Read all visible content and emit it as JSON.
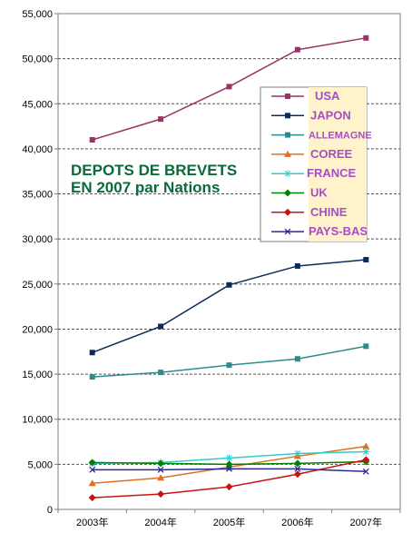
{
  "chart_data": {
    "type": "line",
    "title_lines": [
      "DEPOTS DE BREVETS",
      "EN 2007 par Nations"
    ],
    "categories": [
      "2003年",
      "2004年",
      "2005年",
      "2006年",
      "2007年"
    ],
    "y_ticks": [
      "0",
      "5,000",
      "10,000",
      "15,000",
      "20,000",
      "25,000",
      "30,000",
      "35,000",
      "40,000",
      "45,000",
      "50,000",
      "55,000"
    ],
    "ylim": [
      0,
      55000
    ],
    "grid": "horizontal dashed",
    "legend_position": "top-right",
    "series": [
      {
        "name": "USA",
        "color": "#993366",
        "marker": "square",
        "values": [
          41000,
          43300,
          46900,
          51000,
          52300
        ]
      },
      {
        "name": "JAPON",
        "color": "#0b2a5a",
        "marker": "square",
        "values": [
          17400,
          20300,
          24900,
          27000,
          27700
        ]
      },
      {
        "name": "ALLEMAGNE",
        "color": "#2e8b8b",
        "marker": "square",
        "values": [
          14700,
          15200,
          16000,
          16700,
          18100
        ]
      },
      {
        "name": "COREE",
        "color": "#e07020",
        "marker": "triangle",
        "values": [
          2900,
          3500,
          4700,
          5900,
          7000
        ]
      },
      {
        "name": "FRANCE",
        "color": "#33cccc",
        "marker": "star",
        "values": [
          5100,
          5200,
          5700,
          6200,
          6400
        ]
      },
      {
        "name": "UK",
        "color": "#008000",
        "marker": "diamond",
        "values": [
          5200,
          5100,
          5000,
          5100,
          5300
        ]
      },
      {
        "name": "CHINE",
        "color": "#cc1111",
        "marker": "diamond",
        "values": [
          1300,
          1700,
          2500,
          3900,
          5500
        ]
      },
      {
        "name": "PAYS-BAS",
        "color": "#2a2a90",
        "marker": "x",
        "values": [
          4400,
          4400,
          4500,
          4500,
          4200
        ]
      }
    ]
  }
}
